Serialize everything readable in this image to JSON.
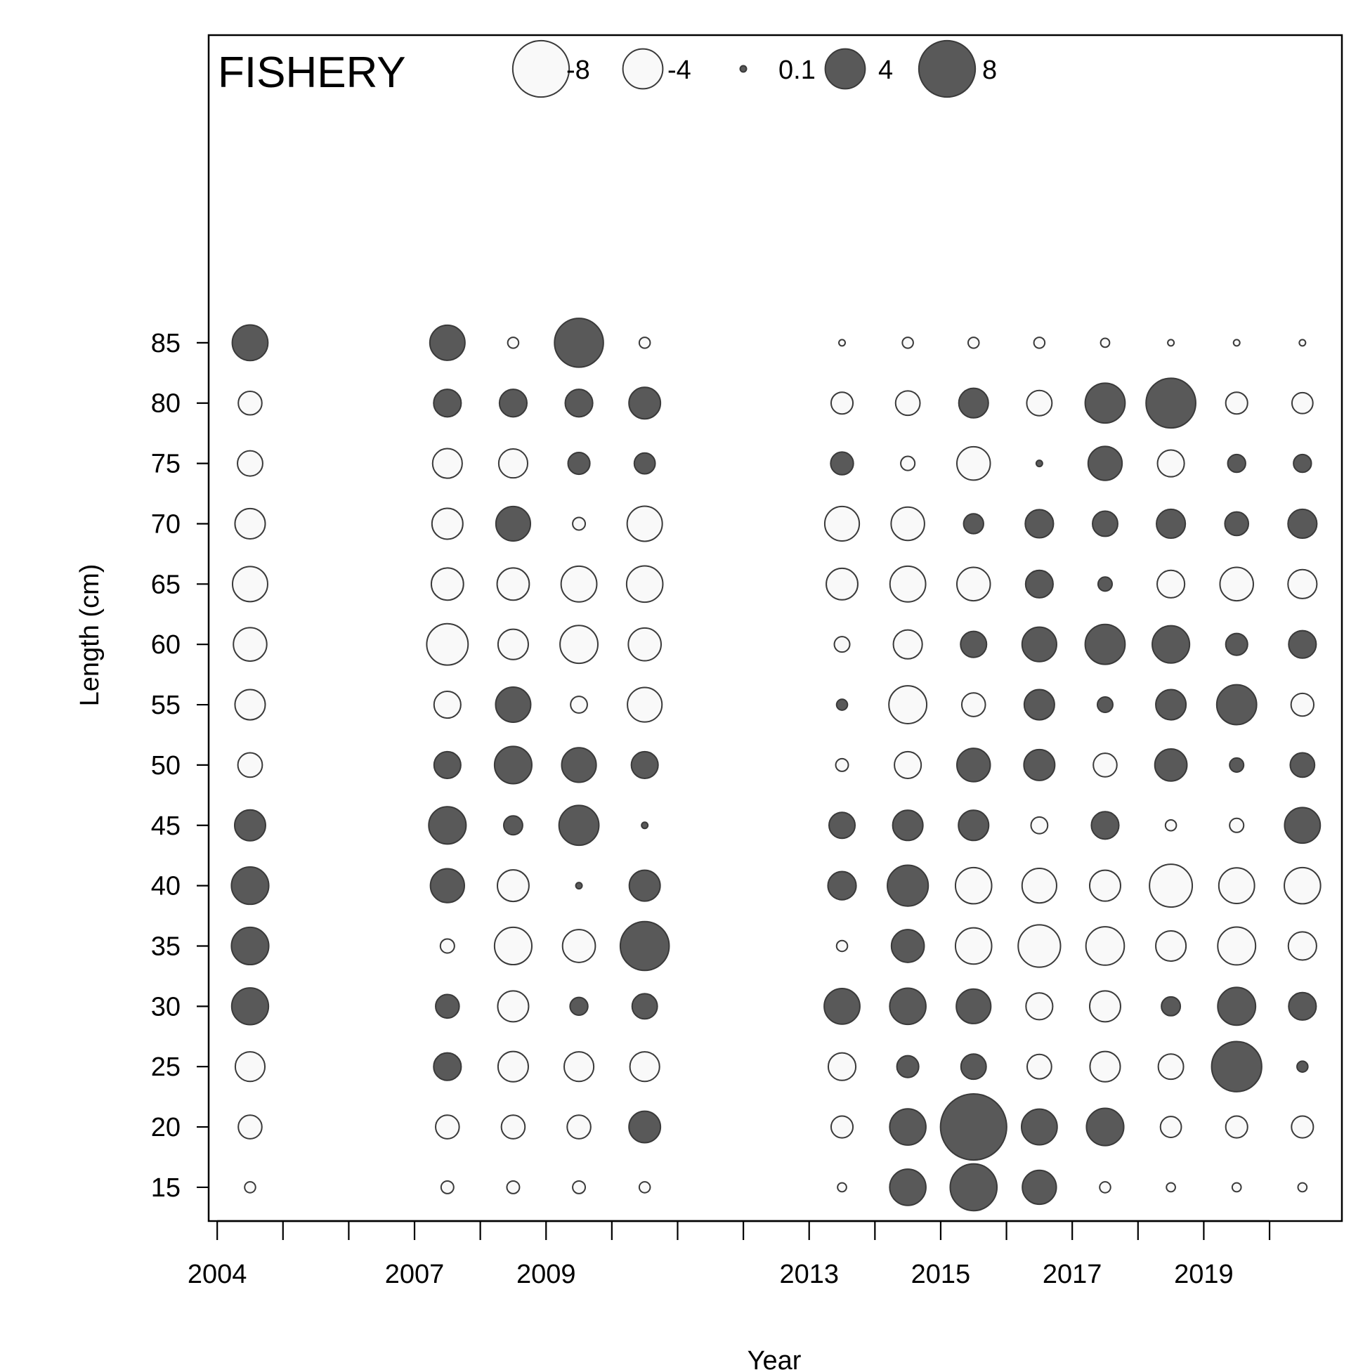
{
  "chart_data": {
    "type": "scatter",
    "panel_label": "FISHERY",
    "xlabel": "Year",
    "ylabel": "Length (cm)",
    "x_ticks": [
      2004,
      2005,
      2006,
      2007,
      2008,
      2009,
      2010,
      2011,
      2012,
      2013,
      2014,
      2015,
      2016,
      2017,
      2018,
      2019,
      2020
    ],
    "x_tick_labels": {
      "2004": "2004",
      "2007": "2007",
      "2009": "2009",
      "2013": "2013",
      "2015": "2015",
      "2017": "2017",
      "2019": "2019"
    },
    "y_ticks": [
      15,
      20,
      25,
      30,
      35,
      40,
      45,
      50,
      55,
      60,
      65,
      70,
      75,
      80,
      85
    ],
    "y_tick_labels": [
      "15",
      "20",
      "25",
      "30",
      "35",
      "40",
      "45",
      "50",
      "55",
      "60",
      "65",
      "70",
      "75",
      "80",
      "85"
    ],
    "xlim": [
      2003.87,
      2021.1
    ],
    "ylim": [
      12.2,
      110.5
    ],
    "grid": false,
    "legend_placement": "top",
    "legend": [
      {
        "value": -8,
        "label": "-8"
      },
      {
        "value": -4,
        "label": "-4"
      },
      {
        "value": 0.1,
        "label": "0.1"
      },
      {
        "value": 4,
        "label": "4"
      },
      {
        "value": 8,
        "label": "8"
      }
    ],
    "colors": {
      "positive": "#595959",
      "negative": "#f9f9f9",
      "stroke": "#3a3a3a"
    },
    "lengths": [
      85,
      80,
      75,
      70,
      65,
      60,
      55,
      50,
      45,
      40,
      35,
      30,
      25,
      20,
      15
    ],
    "series": [
      {
        "year": 2004.5,
        "residuals": [
          3.2,
          -1.4,
          -1.6,
          -2.3,
          -3.1,
          -2.8,
          -2.3,
          -1.5,
          2.4,
          3.5,
          3.5,
          3.4,
          -2.2,
          -1.4,
          -0.3
        ]
      },
      {
        "year": 2007.5,
        "residuals": [
          3.1,
          1.9,
          -2.2,
          -2.4,
          -2.6,
          -4.3,
          -1.8,
          1.8,
          3.5,
          2.9,
          -0.5,
          1.4,
          1.9,
          -1.4,
          -0.4
        ]
      },
      {
        "year": 2008.5,
        "residuals": [
          -0.3,
          1.9,
          -2.1,
          3.0,
          -2.6,
          -2.3,
          3.1,
          3.5,
          0.9,
          -2.5,
          -3.5,
          -2.4,
          -2.3,
          -1.4,
          -0.4
        ]
      },
      {
        "year": 2009.5,
        "residuals": [
          6.0,
          1.9,
          1.2,
          -0.4,
          -3.2,
          -3.6,
          -0.7,
          3.0,
          4.0,
          0.1,
          -2.7,
          0.8,
          -2.2,
          -1.4,
          -0.4
        ]
      },
      {
        "year": 2010.5,
        "residuals": [
          -0.3,
          2.5,
          1.1,
          -3.1,
          -3.3,
          -2.7,
          -3.0,
          1.8,
          0.1,
          2.4,
          6.0,
          1.6,
          -2.2,
          2.5,
          -0.3
        ]
      },
      {
        "year": 2013.5,
        "residuals": [
          -0.1,
          -1.2,
          1.3,
          -3.0,
          -2.5,
          -0.6,
          0.3,
          -0.4,
          1.7,
          2.0,
          -0.3,
          3.2,
          -1.9,
          -1.2,
          -0.2
        ]
      },
      {
        "year": 2014.5,
        "residuals": [
          -0.3,
          -1.5,
          -0.5,
          -2.8,
          -3.2,
          -2.1,
          -3.6,
          -1.8,
          2.3,
          4.2,
          2.7,
          3.3,
          1.2,
          3.3,
          3.3
        ]
      },
      {
        "year": 2015.5,
        "residuals": [
          -0.3,
          2.2,
          -2.8,
          1.0,
          -2.8,
          1.7,
          -1.4,
          2.8,
          2.3,
          -3.3,
          -3.3,
          3.0,
          1.6,
          11.0,
          5.5
        ]
      },
      {
        "year": 2016.5,
        "residuals": [
          -0.3,
          -1.6,
          0.1,
          2.0,
          1.9,
          3.0,
          2.3,
          2.4,
          -0.7,
          -3.0,
          -4.5,
          -1.8,
          -1.5,
          3.2,
          2.9
        ]
      },
      {
        "year": 2017.5,
        "residuals": [
          -0.2,
          4.0,
          2.9,
          1.6,
          0.5,
          4.0,
          0.6,
          -1.4,
          1.9,
          -2.4,
          -3.7,
          -2.4,
          -2.3,
          3.5,
          -0.3
        ]
      },
      {
        "year": 2018.5,
        "residuals": [
          -0.1,
          6.2,
          -1.8,
          2.1,
          -1.9,
          3.5,
          2.3,
          2.6,
          -0.3,
          -4.6,
          -2.3,
          0.9,
          -1.6,
          -1.1,
          -0.2
        ]
      },
      {
        "year": 2019.5,
        "residuals": [
          -0.1,
          -1.2,
          0.8,
          1.4,
          -2.8,
          1.2,
          4.0,
          0.5,
          -0.5,
          -3.2,
          -3.6,
          3.6,
          6.3,
          -1.2,
          -0.2
        ]
      },
      {
        "year": 2020.5,
        "residuals": [
          -0.1,
          -1.1,
          0.8,
          2.1,
          -2.1,
          1.9,
          -1.3,
          1.5,
          3.2,
          -3.3,
          -2.0,
          1.9,
          0.3,
          -1.2,
          -0.2
        ]
      }
    ]
  }
}
